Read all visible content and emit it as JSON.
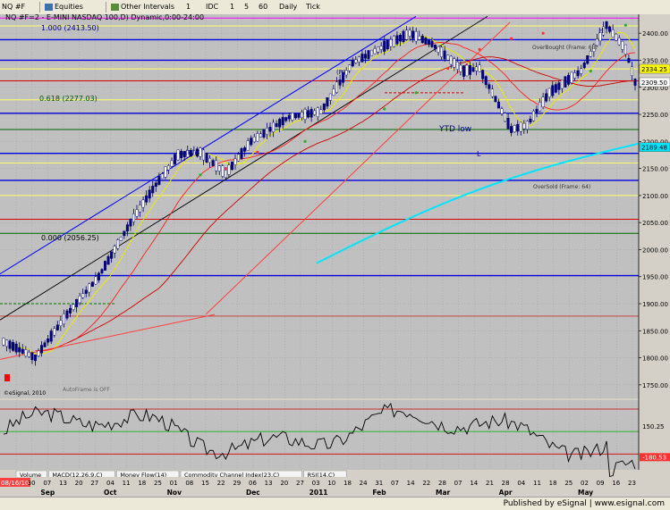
{
  "toolbar": {
    "symbol": "NQ #F",
    "equities_label": "Equities",
    "other_intervals_label": "Other Intervals",
    "interval_buttons": [
      "1",
      "IDC",
      "1",
      "5",
      "60",
      "Daily",
      "Tick"
    ]
  },
  "chart_data": {
    "type": "candlestick",
    "title": "NQ #F=2 - E-MINI NASDAQ 100,D) Dynamic,0:00-24:00",
    "x_tick_labels": [
      "08/16/10",
      "30",
      "07",
      "13",
      "20",
      "27",
      "04",
      "11",
      "18",
      "25",
      "01",
      "08",
      "15",
      "22",
      "29",
      "06",
      "13",
      "20",
      "27",
      "03",
      "10",
      "18",
      "24",
      "31",
      "07",
      "14",
      "22",
      "28",
      "07",
      "14",
      "21",
      "28",
      "04",
      "11",
      "18",
      "25",
      "02",
      "09",
      "16",
      "23"
    ],
    "month_labels": [
      "Sep",
      "Oct",
      "Nov",
      "Dec",
      "2011",
      "Feb",
      "Mar",
      "Apr",
      "May"
    ],
    "price_axis_labels": [
      "2400.00",
      "2350.00",
      "2300.00",
      "2250.00",
      "2200.00",
      "2150.00",
      "2100.00",
      "2050.00",
      "2000.00",
      "1950.00",
      "1900.00",
      "1850.00",
      "1800.00",
      "1750.00"
    ],
    "ylim": [
      1725,
      2435
    ],
    "current_price_labels": [
      "2334.25",
      "2309.50",
      "2189.48"
    ],
    "fib_labels": [
      "1.000 (2413.50)",
      "0.618 (2277.03)",
      "0.000 (2056.25)"
    ],
    "annotations": [
      "YTD low",
      "L",
      "H",
      "(R)",
      "(R)",
      "OverBought (Frame: 68)",
      "OverSold (Frame: 64)",
      "AutoFrame is OFF",
      "©eSignal, 2010"
    ],
    "horizontal_levels": [
      {
        "value": 2428,
        "color": "#ff00ff"
      },
      {
        "value": 2413.5,
        "color": "#ffff66"
      },
      {
        "value": 2388,
        "color": "#0000dd"
      },
      {
        "value": 2350,
        "color": "#0000dd"
      },
      {
        "value": 2334,
        "color": "#ffff66"
      },
      {
        "value": 2312,
        "color": "#dd0000"
      },
      {
        "value": 2277,
        "color": "#ffff66"
      },
      {
        "value": 2252,
        "color": "#0000dd"
      },
      {
        "value": 2222,
        "color": "#006600"
      },
      {
        "value": 2178,
        "color": "#0000dd"
      },
      {
        "value": 2160,
        "color": "#ffff66"
      },
      {
        "value": 2128,
        "color": "#0000dd"
      },
      {
        "value": 2100,
        "color": "#ffff66"
      },
      {
        "value": 2056,
        "color": "#dd0000"
      },
      {
        "value": 2030,
        "color": "#006600"
      },
      {
        "value": 1952,
        "color": "#0000dd"
      }
    ],
    "lower_panel": {
      "tabs": [
        "Volume",
        "MACD(12,26,9,C)",
        "Money Flow(14)",
        "Commodity Channel Index(23,C)",
        "RSI(14,C)"
      ],
      "axis_labels": [
        "150.25",
        "-180.53"
      ],
      "levels": [
        100,
        0,
        -100
      ]
    },
    "grid": true
  },
  "footer": {
    "published": "Published by eSignal | www.esignal.com"
  }
}
